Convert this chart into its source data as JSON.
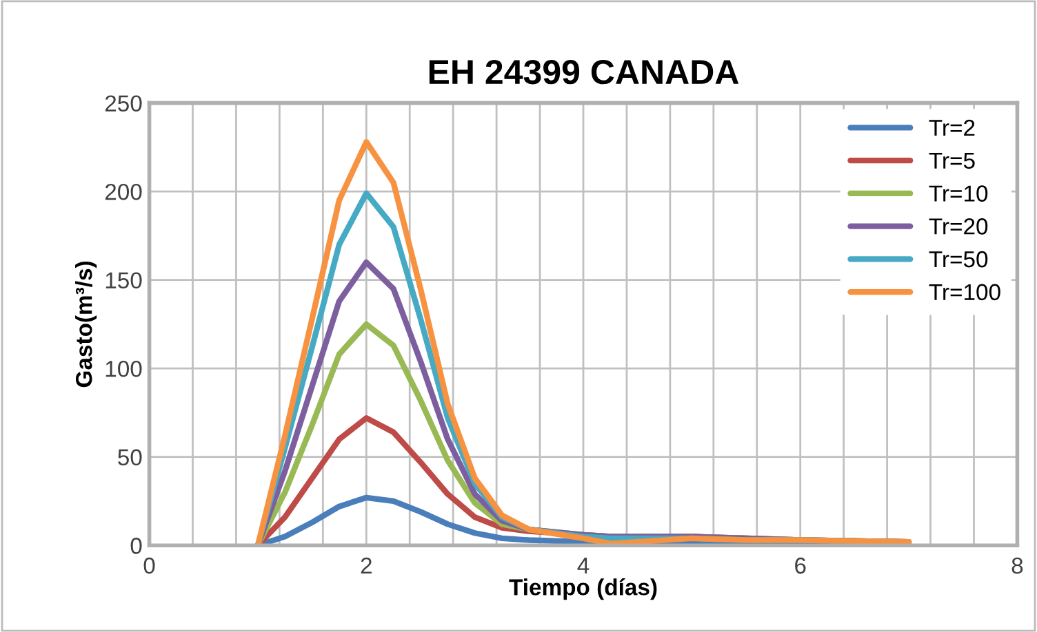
{
  "chart_data": {
    "type": "line",
    "title": "EH 24399 CANADA",
    "xlabel": "Tiempo (días)",
    "ylabel": "Gasto(m³/s)",
    "x": [
      1,
      1.25,
      1.5,
      1.75,
      2,
      2.25,
      2.5,
      2.75,
      3,
      3.25,
      3.5,
      4,
      4.25,
      4.5,
      5,
      5.5,
      6,
      7
    ],
    "series": [
      {
        "name": "Tr=2",
        "color": "#4a7ebb",
        "values": [
          0,
          5,
          13,
          22,
          27,
          25,
          19,
          12,
          7,
          4,
          3,
          2,
          1,
          1,
          1,
          1,
          1,
          1
        ]
      },
      {
        "name": "Tr=5",
        "color": "#be4b48",
        "values": [
          0,
          16,
          38,
          60,
          72,
          64,
          47,
          29,
          16,
          10,
          8,
          6,
          5,
          5,
          5,
          4,
          3,
          2
        ]
      },
      {
        "name": "Tr=10",
        "color": "#98b954",
        "values": [
          0,
          30,
          68,
          108,
          125,
          113,
          82,
          48,
          24,
          12,
          9,
          6,
          5,
          5,
          5,
          4,
          3,
          2
        ]
      },
      {
        "name": "Tr=20",
        "color": "#7d5fa0",
        "values": [
          0,
          42,
          90,
          138,
          160,
          145,
          104,
          60,
          29,
          14,
          9,
          6,
          5,
          5,
          5,
          4,
          3,
          2
        ]
      },
      {
        "name": "Tr=50",
        "color": "#46aac5",
        "values": [
          0,
          55,
          112,
          170,
          199,
          180,
          128,
          72,
          35,
          16,
          9,
          5,
          4,
          4,
          4,
          3,
          3,
          2
        ]
      },
      {
        "name": "Tr=100",
        "color": "#f69240",
        "values": [
          0,
          62,
          128,
          195,
          228,
          205,
          145,
          80,
          38,
          17,
          9,
          4,
          1,
          2,
          4,
          3,
          3,
          2
        ]
      }
    ],
    "xlim": [
      0,
      8
    ],
    "ylim": [
      0,
      250
    ],
    "xticks": [
      0,
      {
        "value": 0.4,
        "label": null
      },
      {
        "value": 0.8,
        "label": null
      },
      {
        "value": 1.2,
        "label": null
      },
      {
        "value": 1.6,
        "label": null
      },
      2,
      {
        "value": 2.4,
        "label": null
      },
      {
        "value": 2.8,
        "label": null
      },
      {
        "value": 3.2,
        "label": null
      },
      {
        "value": 3.6,
        "label": null
      },
      4,
      {
        "value": 4.4,
        "label": null
      },
      {
        "value": 4.8,
        "label": null
      },
      {
        "value": 5.2,
        "label": null
      },
      {
        "value": 5.6,
        "label": null
      },
      6,
      {
        "value": 6.4,
        "label": null
      },
      {
        "value": 6.8,
        "label": null
      },
      {
        "value": 7.2,
        "label": null
      },
      {
        "value": 7.6,
        "label": null
      },
      8
    ],
    "yticks": [
      0,
      50,
      100,
      150,
      200,
      250
    ],
    "grid": true,
    "legend": "top right",
    "marker": "none",
    "line_style": "solid"
  }
}
